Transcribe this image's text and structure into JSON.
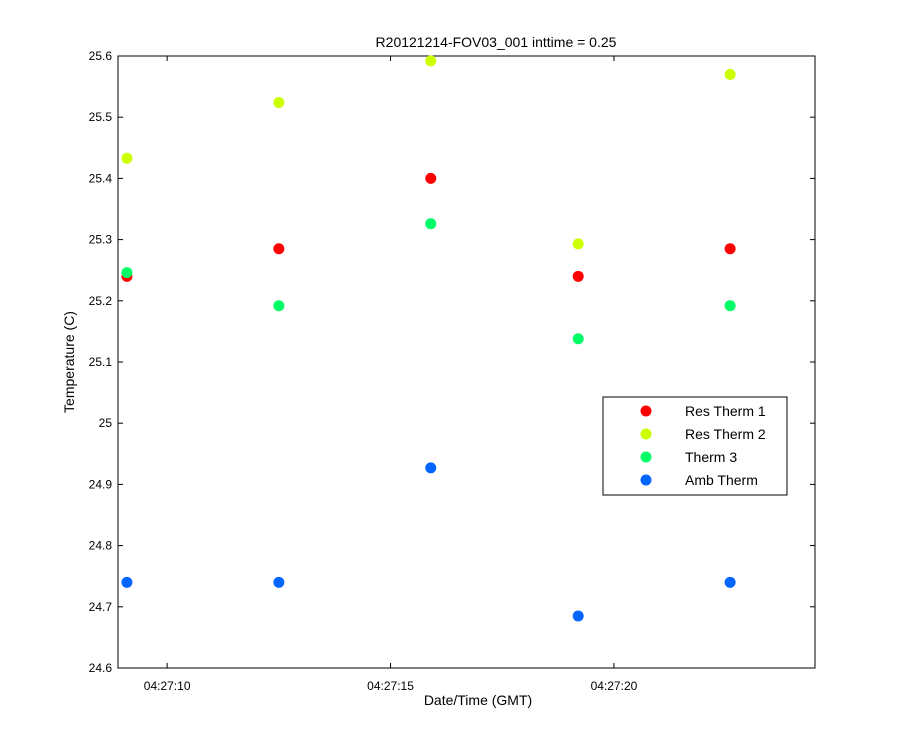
{
  "chart_data": {
    "type": "scatter",
    "title": "R20121214-FOV03_001 inttime = 0.25",
    "xlabel": "Date/Time (GMT)",
    "ylabel": "Temperature (C)",
    "x_ticks": [
      "04:27:10",
      "04:27:15",
      "04:27:20"
    ],
    "y_ticks": [
      "24.6",
      "24.7",
      "24.8",
      "24.9",
      "25",
      "25.1",
      "25.2",
      "25.3",
      "25.4",
      "25.5",
      "25.6"
    ],
    "ylim": [
      24.6,
      25.6
    ],
    "xlim": [
      "04:27:08.9",
      "04:27:24.5"
    ],
    "legend_position": "middle-right",
    "grid": false,
    "x": [
      "04:27:09.1",
      "04:27:12.5",
      "04:27:15.9",
      "04:27:19.2",
      "04:27:22.6"
    ],
    "series": [
      {
        "name": "Res Therm 1",
        "color": "#ff0000",
        "values": [
          25.24,
          25.285,
          25.4,
          25.24,
          25.285
        ]
      },
      {
        "name": "Res Therm 2",
        "color": "#ccff00",
        "values": [
          25.433,
          25.524,
          25.592,
          25.293,
          25.57
        ]
      },
      {
        "name": "Therm 3",
        "color": "#00ff66",
        "values": [
          25.246,
          25.192,
          25.326,
          25.138,
          25.192
        ]
      },
      {
        "name": "Amb Therm",
        "color": "#0066ff",
        "values": [
          24.74,
          24.74,
          24.927,
          24.685,
          24.74
        ]
      }
    ]
  }
}
